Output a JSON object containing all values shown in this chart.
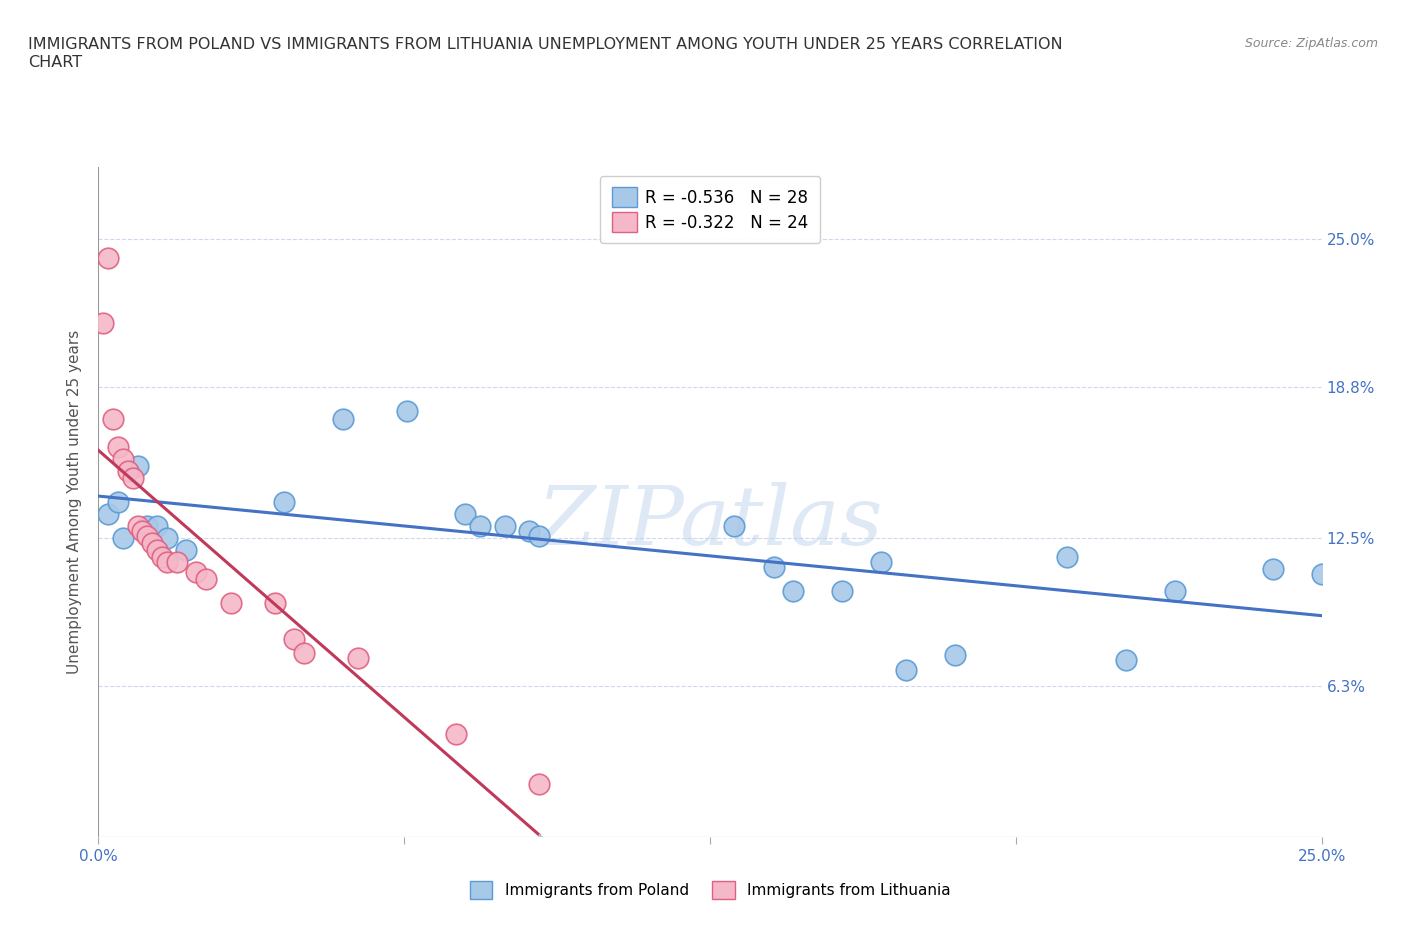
{
  "title": "IMMIGRANTS FROM POLAND VS IMMIGRANTS FROM LITHUANIA UNEMPLOYMENT AMONG YOUTH UNDER 25 YEARS CORRELATION\nCHART",
  "source": "Source: ZipAtlas.com",
  "ylabel": "Unemployment Among Youth under 25 years",
  "xlim": [
    0.0,
    0.25
  ],
  "ylim": [
    0.0,
    0.28
  ],
  "ytick_values": [
    0.063,
    0.125,
    0.188,
    0.25
  ],
  "ytick_labels": [
    "6.3%",
    "12.5%",
    "18.8%",
    "25.0%"
  ],
  "xtick_values": [
    0.0,
    0.0625,
    0.125,
    0.1875,
    0.25
  ],
  "xtick_labels": [
    "0.0%",
    "",
    "",
    "",
    "25.0%"
  ],
  "poland_color": "#a8c8e8",
  "lithuania_color": "#f5b8c8",
  "poland_edge": "#5b9bd5",
  "lithuania_edge": "#e06080",
  "regression_poland_color": "#4472C4",
  "regression_lithuania_color": "#C0395A",
  "regression_lithuania_dashed_color": "#C0C0C0",
  "poland_R": "-0.536",
  "poland_N": "28",
  "lithuania_R": "-0.322",
  "lithuania_N": "24",
  "poland_points": [
    [
      0.002,
      0.135
    ],
    [
      0.004,
      0.14
    ],
    [
      0.005,
      0.125
    ],
    [
      0.008,
      0.155
    ],
    [
      0.01,
      0.13
    ],
    [
      0.012,
      0.13
    ],
    [
      0.014,
      0.125
    ],
    [
      0.018,
      0.12
    ],
    [
      0.038,
      0.14
    ],
    [
      0.05,
      0.175
    ],
    [
      0.063,
      0.178
    ],
    [
      0.075,
      0.135
    ],
    [
      0.078,
      0.13
    ],
    [
      0.083,
      0.13
    ],
    [
      0.088,
      0.128
    ],
    [
      0.09,
      0.126
    ],
    [
      0.13,
      0.13
    ],
    [
      0.138,
      0.113
    ],
    [
      0.142,
      0.103
    ],
    [
      0.152,
      0.103
    ],
    [
      0.16,
      0.115
    ],
    [
      0.165,
      0.07
    ],
    [
      0.175,
      0.076
    ],
    [
      0.198,
      0.117
    ],
    [
      0.21,
      0.074
    ],
    [
      0.22,
      0.103
    ],
    [
      0.24,
      0.112
    ],
    [
      0.25,
      0.11
    ]
  ],
  "lithuania_points": [
    [
      0.001,
      0.215
    ],
    [
      0.002,
      0.242
    ],
    [
      0.003,
      0.175
    ],
    [
      0.004,
      0.163
    ],
    [
      0.005,
      0.158
    ],
    [
      0.006,
      0.153
    ],
    [
      0.007,
      0.15
    ],
    [
      0.008,
      0.13
    ],
    [
      0.009,
      0.128
    ],
    [
      0.01,
      0.126
    ],
    [
      0.011,
      0.123
    ],
    [
      0.012,
      0.12
    ],
    [
      0.013,
      0.117
    ],
    [
      0.014,
      0.115
    ],
    [
      0.016,
      0.115
    ],
    [
      0.02,
      0.111
    ],
    [
      0.022,
      0.108
    ],
    [
      0.027,
      0.098
    ],
    [
      0.036,
      0.098
    ],
    [
      0.04,
      0.083
    ],
    [
      0.042,
      0.077
    ],
    [
      0.053,
      0.075
    ],
    [
      0.073,
      0.043
    ],
    [
      0.09,
      0.022
    ]
  ],
  "watermark_text": "ZIPatlas",
  "background_color": "#FFFFFF",
  "grid_color": "#D0D8F0",
  "title_color": "#333333",
  "tick_label_color": "#4472C4"
}
